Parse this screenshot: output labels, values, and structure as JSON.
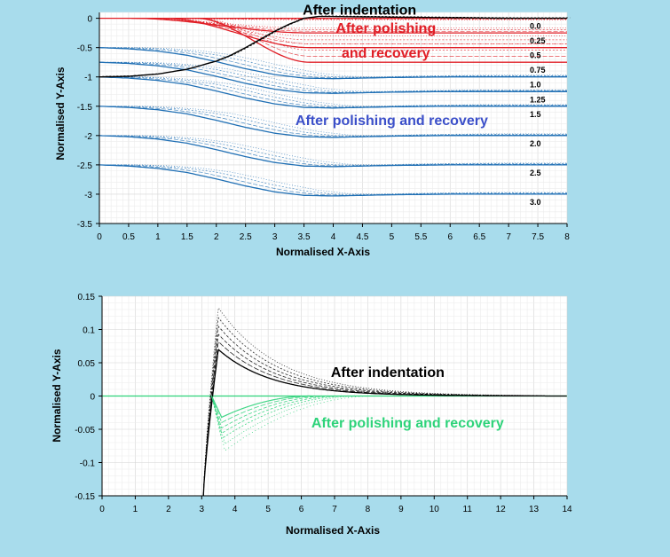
{
  "colors": {
    "background": "#a8dcec",
    "plot_background": "#ffffff",
    "grid_minor": "#ececec",
    "grid_major": "#d4d4d4",
    "black": "#000000",
    "red": "#e01e26",
    "blue": "#1f6fb4",
    "blue_text": "#3b4fc9",
    "green": "#2ed37a"
  },
  "chart_data": [
    {
      "type": "line",
      "xlabel": "Normalised X-Axis",
      "ylabel": "Normalised Y-Axis",
      "xlim": [
        0,
        8
      ],
      "ylim": [
        -3.5,
        0.1
      ],
      "xticks": [
        "0",
        "0.5",
        "1",
        "1.5",
        "2",
        "2.5",
        "3",
        "3.5",
        "4",
        "4.5",
        "5",
        "5.5",
        "6",
        "6.5",
        "7",
        "7.5",
        "8"
      ],
      "yticks": [
        "0",
        "-0.5",
        "-1",
        "-1.5",
        "-2",
        "-2.5",
        "-3",
        "-3.5"
      ],
      "grid": true,
      "annotations": [
        {
          "text": "After indentation",
          "x": 4.45,
          "y": 0.06,
          "color": "black"
        },
        {
          "text": "After polishing",
          "x": 4.9,
          "y": -0.25,
          "color": "red"
        },
        {
          "text": "and recovery",
          "x": 4.9,
          "y": -0.67,
          "color": "red"
        },
        {
          "text": "After polishing and recovery",
          "x": 5.0,
          "y": -1.82,
          "color": "blue_text"
        }
      ],
      "depth_labels": [
        {
          "text": "0.0",
          "offset": 0.0
        },
        {
          "text": "0.25",
          "offset": 0.25
        },
        {
          "text": "0.5",
          "offset": 0.5
        },
        {
          "text": "0.75",
          "offset": 0.75
        },
        {
          "text": "1.0",
          "offset": 1.0
        },
        {
          "text": "1.25",
          "offset": 1.25
        },
        {
          "text": "1.5",
          "offset": 1.5
        },
        {
          "text": "2.0",
          "offset": 2.0
        },
        {
          "text": "2.5",
          "offset": 2.5
        },
        {
          "text": "3.0",
          "offset": 3.0
        }
      ],
      "indentation_curve": {
        "x": [
          0,
          0.5,
          1.0,
          1.5,
          2.0,
          2.25,
          2.5,
          2.75,
          3.0,
          3.25,
          3.5,
          3.75,
          4.0,
          5.0,
          6.0,
          7.0,
          8.0
        ],
        "y": [
          -1.0,
          -0.99,
          -0.95,
          -0.87,
          -0.73,
          -0.63,
          -0.5,
          -0.36,
          -0.22,
          -0.1,
          0.0,
          0.03,
          0.03,
          0.02,
          0.01,
          0.0,
          0.0
        ]
      },
      "polished_profile": {
        "x": [
          0,
          0.5,
          1.0,
          1.5,
          2.0,
          2.5,
          3.0,
          3.5,
          4.0,
          4.5,
          5.0,
          6.0,
          7.0,
          8.0
        ],
        "y_relative": [
          0,
          -0.02,
          -0.06,
          -0.13,
          -0.24,
          -0.36,
          -0.46,
          -0.52,
          -0.53,
          -0.52,
          -0.51,
          -0.5,
          -0.5,
          -0.5
        ]
      }
    },
    {
      "type": "line",
      "xlabel": "Normalised X-Axis",
      "ylabel": "Normalised Y-Axis",
      "xlim": [
        0,
        14
      ],
      "ylim": [
        -0.15,
        0.15
      ],
      "xticks": [
        "0",
        "1",
        "2",
        "3",
        "4",
        "5",
        "6",
        "7",
        "8",
        "9",
        "10",
        "11",
        "12",
        "13",
        "14"
      ],
      "yticks": [
        "0.15",
        "0.1",
        "0.05",
        "0",
        "-0.05",
        "-0.1",
        "-0.15"
      ],
      "grid": true,
      "annotations": [
        {
          "text": "After indentation",
          "x": 8.6,
          "y": 0.029,
          "color": "black"
        },
        {
          "text": "After polishing and recovery",
          "x": 9.2,
          "y": -0.047,
          "color": "green"
        }
      ],
      "indentation_curves": [
        {
          "peak_x": 3.5,
          "peak_y": 0.07
        },
        {
          "peak_x": 3.5,
          "peak_y": 0.082
        },
        {
          "peak_x": 3.5,
          "peak_y": 0.093
        },
        {
          "peak_x": 3.5,
          "peak_y": 0.105
        },
        {
          "peak_x": 3.5,
          "peak_y": 0.118
        },
        {
          "peak_x": 3.5,
          "peak_y": 0.133
        }
      ],
      "recovery_curves": [
        {
          "min_x": 3.6,
          "min_y": -0.032,
          "end_x": 6.3
        },
        {
          "min_x": 3.6,
          "min_y": -0.04,
          "end_x": 6.6
        },
        {
          "min_x": 3.6,
          "min_y": -0.048,
          "end_x": 6.9
        },
        {
          "min_x": 3.6,
          "min_y": -0.056,
          "end_x": 7.2
        },
        {
          "min_x": 3.6,
          "min_y": -0.064,
          "end_x": 7.5
        },
        {
          "min_x": 3.7,
          "min_y": -0.072,
          "end_x": 7.8
        },
        {
          "min_x": 3.7,
          "min_y": -0.082,
          "end_x": 8.2
        }
      ]
    }
  ]
}
